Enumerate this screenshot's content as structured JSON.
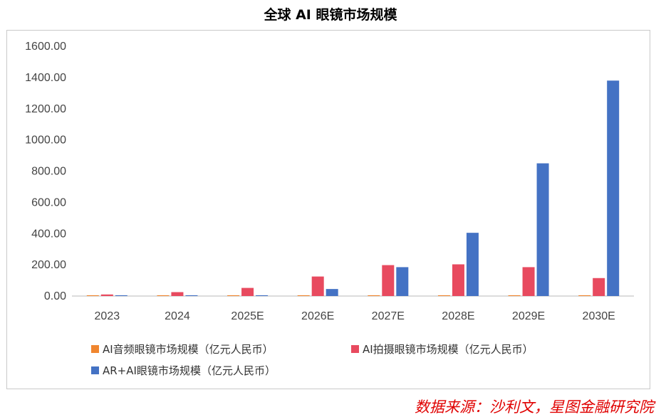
{
  "page": {
    "title": "全球 AI 眼镜市场规模",
    "source": "数据来源：沙利文，星图金融研究院"
  },
  "chart_data": {
    "type": "bar",
    "title": "全球 AI 眼镜市场规模",
    "categories": [
      "2023",
      "2024",
      "2025E",
      "2026E",
      "2027E",
      "2028E",
      "2029E",
      "2030E"
    ],
    "series": [
      {
        "name": "AI音频眼镜市场规模（亿元人民币）",
        "color": "#f0862f",
        "values": [
          5,
          5,
          5,
          5,
          5,
          5,
          5,
          5
        ]
      },
      {
        "name": "AI拍摄眼镜市场规模（亿元人民币）",
        "color": "#e84a5f",
        "values": [
          10,
          25,
          52,
          125,
          198,
          203,
          185,
          115
        ]
      },
      {
        "name": "AR+AI眼镜市场规模（亿元人民币）",
        "color": "#4472c4",
        "values": [
          5,
          5,
          5,
          45,
          185,
          405,
          850,
          1380
        ]
      }
    ],
    "ylim": [
      0,
      1600
    ],
    "yticks": [
      "0.00",
      "200.00",
      "400.00",
      "600.00",
      "800.00",
      "1000.00",
      "1200.00",
      "1400.00",
      "1600.00"
    ],
    "grid": false,
    "legend_position": "bottom"
  }
}
